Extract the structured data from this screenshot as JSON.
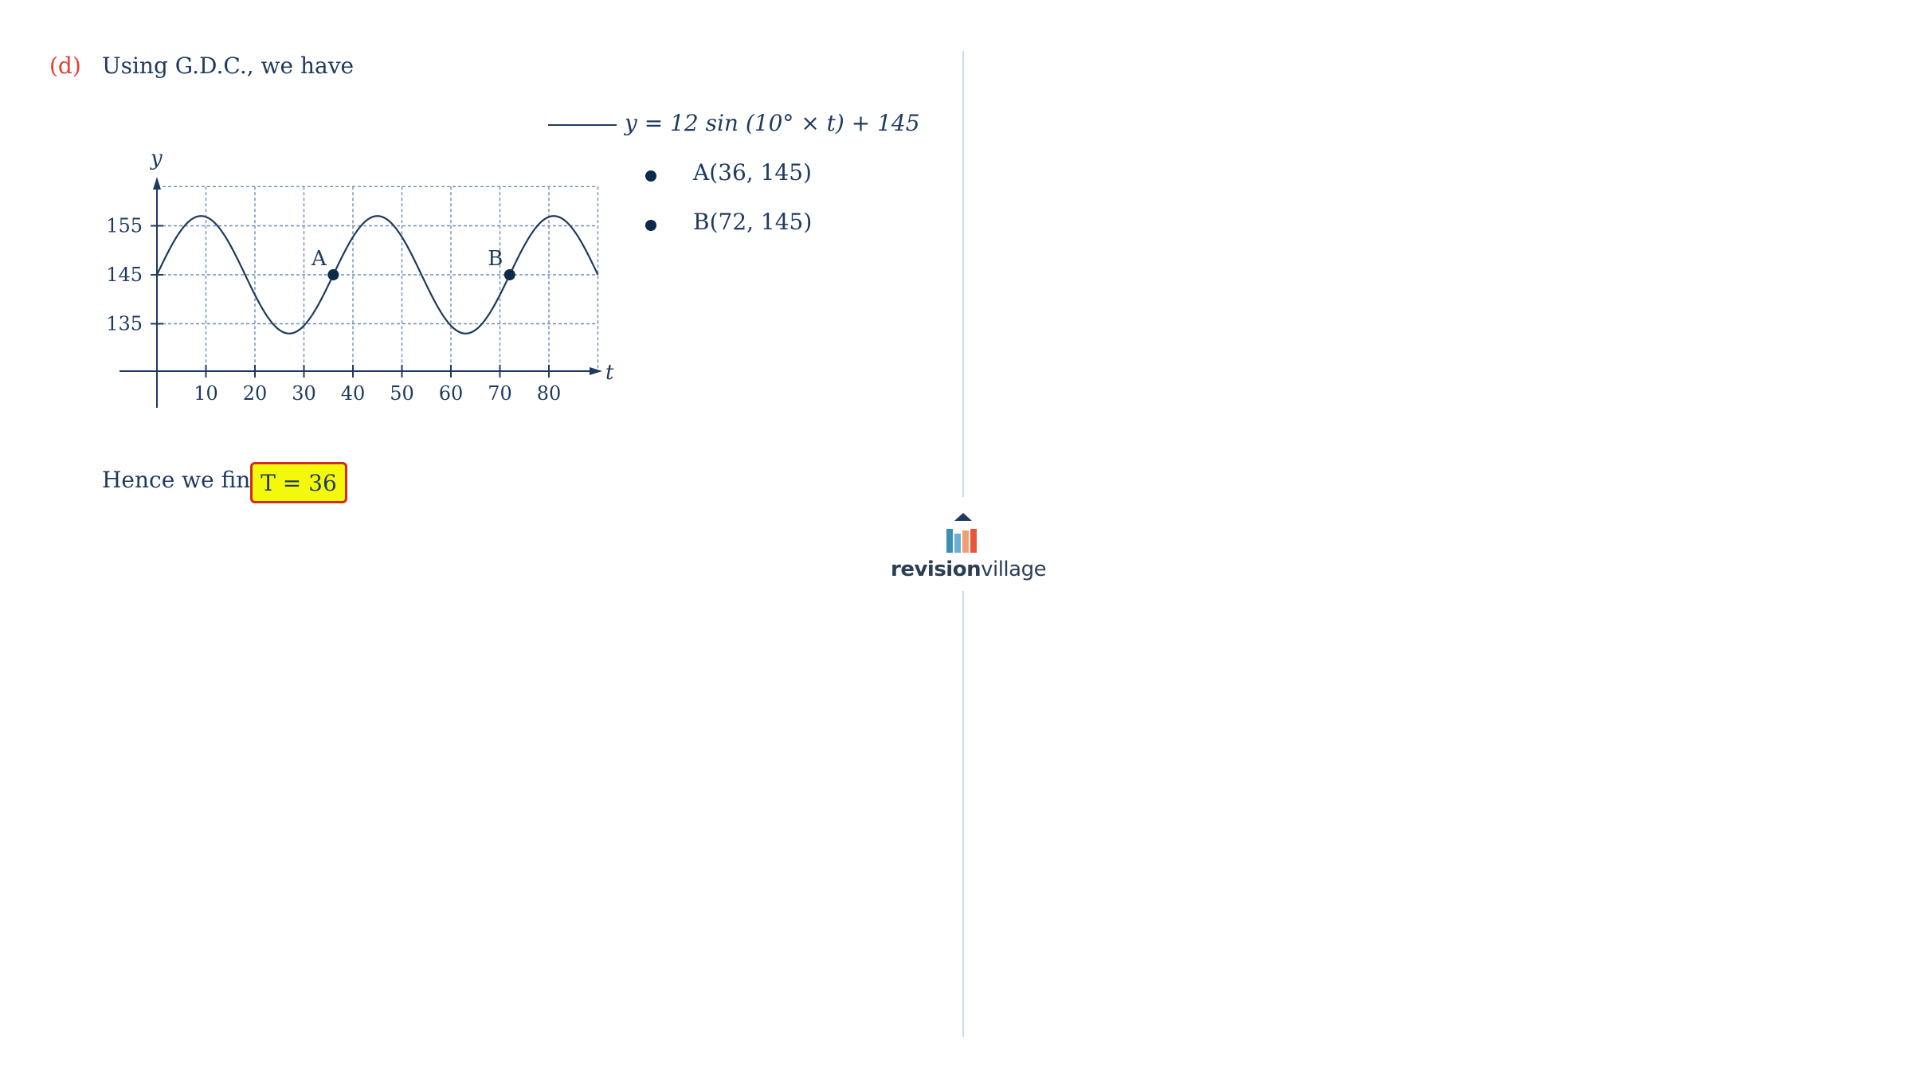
{
  "part": {
    "label": "(d)",
    "intro": "Using G.D.C., we have"
  },
  "chart_data": {
    "type": "line",
    "function": "y = 12 sin(10° × t) + 145",
    "xlabel": "t",
    "ylabel": "y",
    "x_ticks": [
      10,
      20,
      30,
      40,
      50,
      60,
      70,
      80
    ],
    "y_ticks": [
      135,
      145,
      155
    ],
    "xlim": [
      0,
      90
    ],
    "ylim": [
      125,
      165
    ],
    "grid": true,
    "series": [
      {
        "name": "y = 12 sin (10° × t) + 145",
        "amplitude": 12,
        "frequency_deg_per_t": 10,
        "offset": 145,
        "x_range": [
          0,
          90
        ]
      }
    ],
    "points": [
      {
        "label": "A",
        "x": 36,
        "y": 145
      },
      {
        "label": "B",
        "x": 72,
        "y": 145
      }
    ]
  },
  "legend": {
    "equation": "y = 12 sin (10° × t) + 145",
    "points": [
      "A(36, 145)",
      "B(72, 145)"
    ]
  },
  "conclusion": {
    "text": "Hence we find",
    "answer": "T = 36"
  },
  "logo": {
    "bold": "revision",
    "light": "village",
    "colors": [
      "#3a8fb7",
      "#6ab0d4",
      "#f0a070",
      "#e8563a"
    ]
  }
}
